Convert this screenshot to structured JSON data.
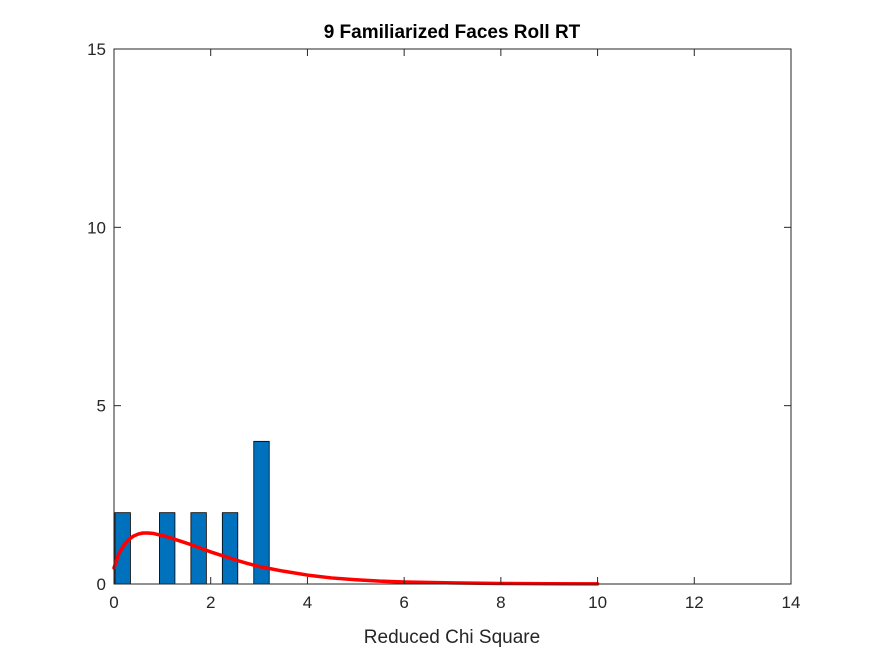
{
  "chart_data": {
    "type": "bar",
    "title": "9 Familiarized Faces Roll RT",
    "xlabel": "Reduced Chi Square",
    "ylabel": "",
    "xlim": [
      0,
      14
    ],
    "ylim": [
      0,
      15
    ],
    "xticks": [
      0,
      2,
      4,
      6,
      8,
      10,
      12,
      14
    ],
    "yticks": [
      0,
      5,
      10,
      15
    ],
    "grid": false,
    "bar_width": 0.32,
    "series": [
      {
        "type": "bar",
        "x": [
          0.18,
          1.1,
          1.75,
          2.4,
          3.05
        ],
        "values": [
          2,
          2,
          2,
          2,
          4
        ],
        "color": "#0072BD"
      },
      {
        "type": "line",
        "x": [
          0,
          0.1,
          0.2,
          0.3,
          0.4,
          0.5,
          0.6,
          0.7,
          0.8,
          0.9,
          1.0,
          1.2,
          1.4,
          1.6,
          1.8,
          2.0,
          2.25,
          2.5,
          2.75,
          3.0,
          3.5,
          4.0,
          4.5,
          5.0,
          5.5,
          6.0,
          7.0,
          8.0,
          9.0,
          10.0
        ],
        "values": [
          0.45,
          0.85,
          1.08,
          1.24,
          1.34,
          1.4,
          1.43,
          1.43,
          1.42,
          1.39,
          1.36,
          1.28,
          1.19,
          1.1,
          1.0,
          0.9,
          0.79,
          0.68,
          0.58,
          0.49,
          0.36,
          0.25,
          0.17,
          0.12,
          0.08,
          0.055,
          0.03,
          0.015,
          0.008,
          0.004
        ],
        "color": "#ff0000"
      }
    ]
  }
}
